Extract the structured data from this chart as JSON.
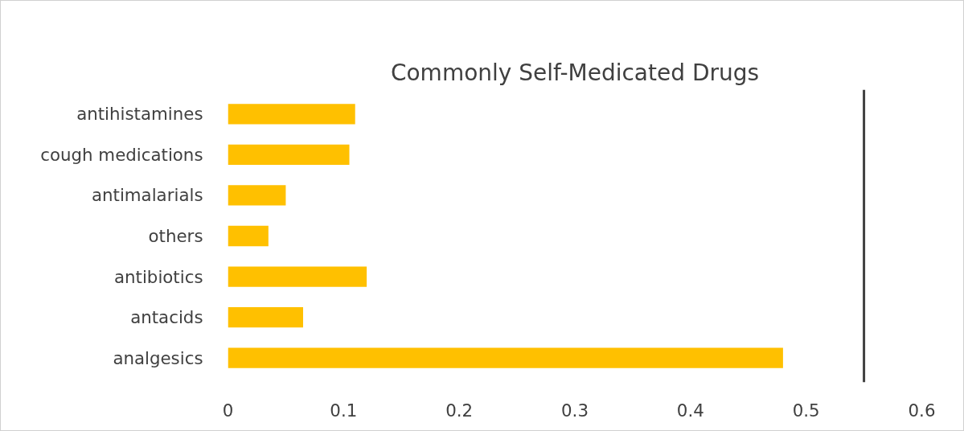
{
  "chart_data": {
    "type": "bar",
    "orientation": "horizontal",
    "title": "Commonly Self-Medicated Drugs",
    "categories": [
      "antihistamines",
      "cough medications",
      "antimalarials",
      "others",
      "antibiotics",
      "antacids",
      "analgesics"
    ],
    "values": [
      0.11,
      0.105,
      0.05,
      0.035,
      0.12,
      0.065,
      0.48
    ],
    "color": "#ffc000",
    "xlim": [
      0,
      0.6
    ],
    "xticks": [
      0,
      0.1,
      0.2,
      0.3,
      0.4,
      0.5,
      0.6
    ],
    "ref_lines": [
      {
        "axis": "x",
        "value": 0.55,
        "color": "#404040"
      }
    ],
    "grid": false
  }
}
